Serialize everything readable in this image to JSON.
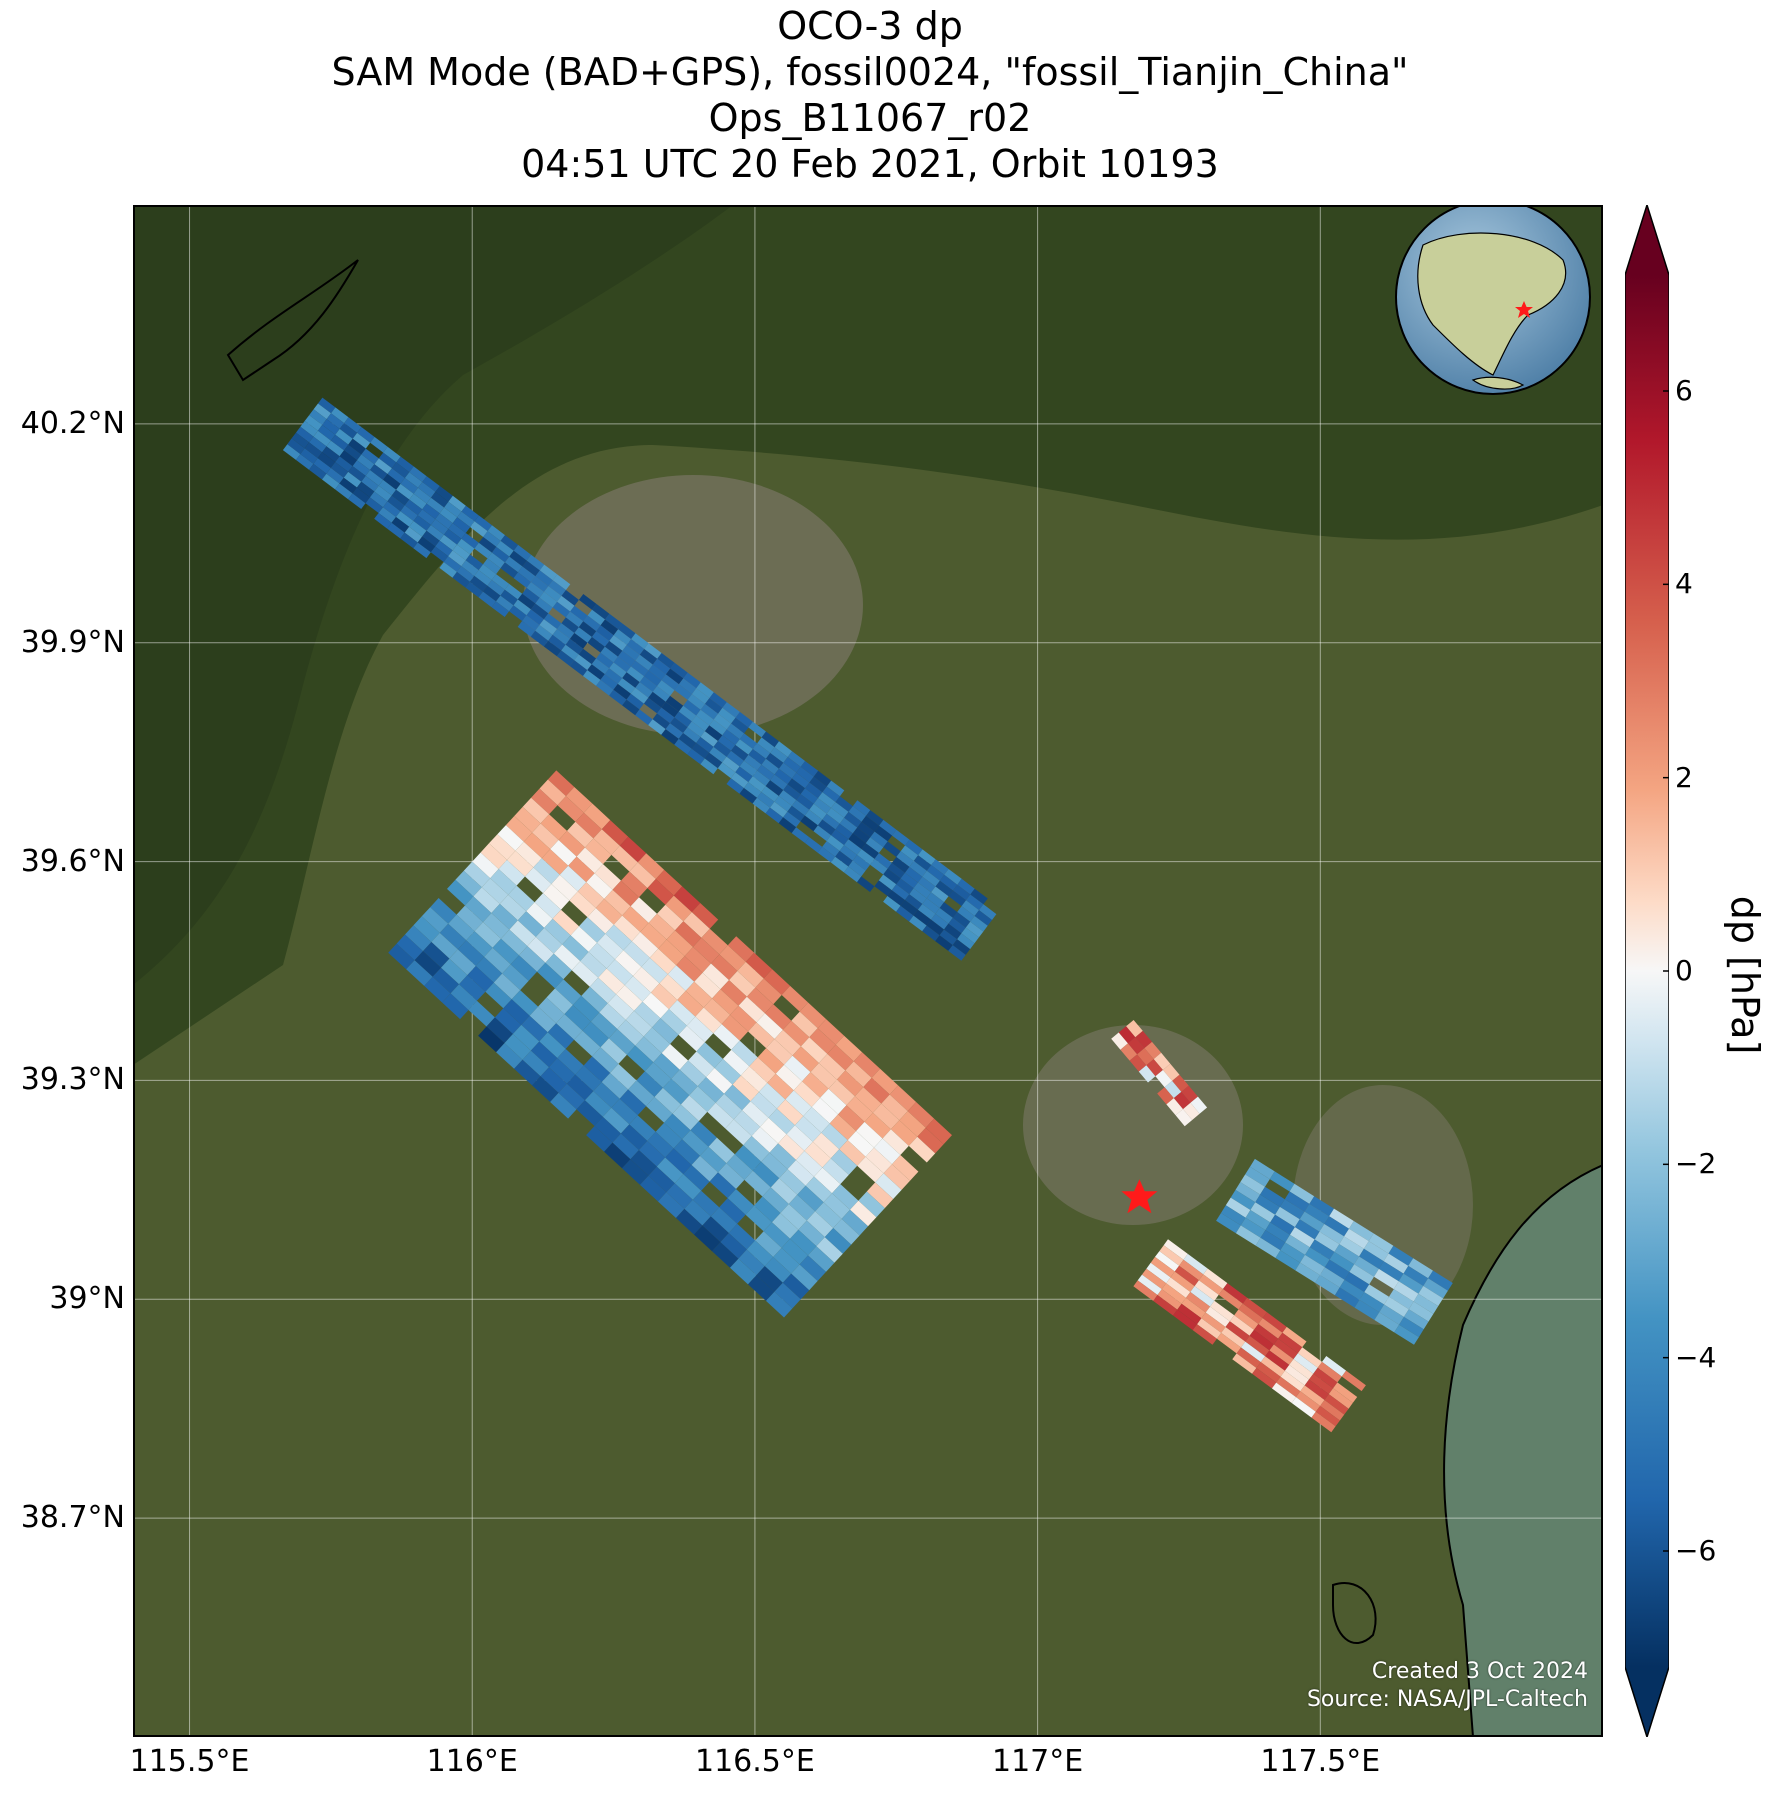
{
  "title_lines": [
    "OCO-3 dp",
    "SAM Mode (BAD+GPS), fossil0024, \"fossil_Tianjin_China\"",
    "Ops_B11067_r02",
    "04:51 UTC 20 Feb 2021, Orbit 10193"
  ],
  "map": {
    "lon_range": [
      115.4,
      118.0
    ],
    "lat_range": [
      38.4,
      40.5
    ],
    "lat_ticks": [
      {
        "value": 40.2,
        "label": "40.2°N"
      },
      {
        "value": 39.9,
        "label": "39.9°N"
      },
      {
        "value": 39.6,
        "label": "39.6°N"
      },
      {
        "value": 39.3,
        "label": "39.3°N"
      },
      {
        "value": 39.0,
        "label": "39°N"
      },
      {
        "value": 38.7,
        "label": "38.7°N"
      }
    ],
    "lon_ticks": [
      {
        "value": 115.5,
        "label": "115.5°E"
      },
      {
        "value": 116.0,
        "label": "116°E"
      },
      {
        "value": 116.5,
        "label": "116.5°E"
      },
      {
        "value": 117.0,
        "label": "117°E"
      },
      {
        "value": 117.5,
        "label": "117.5°E"
      }
    ],
    "target_marker": {
      "lon": 117.18,
      "lat": 39.14,
      "color": "#ff1a1a",
      "icon": "star-icon"
    },
    "background_colors": {
      "land": "#4b5a2e",
      "mountains": "#2f4422",
      "sea": "#5f7a62",
      "urban": "#7d7a6c"
    }
  },
  "swaths": [
    {
      "name": "northwest-strip",
      "lon_start": 115.7,
      "lat_start": 40.2,
      "lon_end": 116.9,
      "lat_end": 39.5,
      "dp_hint": -5
    },
    {
      "name": "central-block",
      "lon_start": 116.0,
      "lat_start": 39.6,
      "lon_end": 116.7,
      "lat_end": 39.1,
      "dp_hint": 3
    },
    {
      "name": "tianjin-north",
      "lon_start": 117.15,
      "lat_start": 39.37,
      "lon_end": 117.28,
      "lat_end": 39.25,
      "dp_hint": 2
    },
    {
      "name": "tianjin-east",
      "lon_start": 117.35,
      "lat_start": 39.15,
      "lon_end": 117.7,
      "lat_end": 38.98,
      "dp_hint": -3
    },
    {
      "name": "tianjin-south",
      "lon_start": 117.2,
      "lat_start": 39.05,
      "lon_end": 117.55,
      "lat_end": 38.85,
      "dp_hint": 2
    }
  ],
  "inset_globe": {
    "icon": "globe-icon",
    "marker_color": "#ff1a1a"
  },
  "colorbar": {
    "title": "dp [hPa]",
    "min": -7.2,
    "max": 7.2,
    "colormap": "RdBu_r",
    "ticks": [
      {
        "value": 6,
        "label": "6"
      },
      {
        "value": 4,
        "label": "4"
      },
      {
        "value": 2,
        "label": "2"
      },
      {
        "value": 0,
        "label": "0"
      },
      {
        "value": -2,
        "label": "−2"
      },
      {
        "value": -4,
        "label": "−4"
      },
      {
        "value": -6,
        "label": "−6"
      }
    ]
  },
  "credits": {
    "created": "Created 3 Oct 2024",
    "source": "Source: NASA/JPL-Caltech"
  }
}
